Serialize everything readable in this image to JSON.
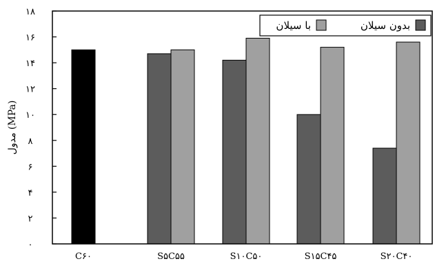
{
  "chart_data": {
    "type": "bar",
    "categories": [
      "C۶۰",
      "S۵C۵۵",
      "S۱۰C۵۰",
      "S۱۵C۴۵",
      "S۲۰C۴۰"
    ],
    "series": [
      {
        "name": "بدون سیلان",
        "values": [
          15.0,
          14.7,
          14.2,
          10.0,
          7.4
        ],
        "color": "#5c5c5c"
      },
      {
        "name": "با سیلان",
        "values": [
          null,
          15.0,
          15.9,
          15.2,
          15.6
        ],
        "color": "#a0a0a0"
      }
    ],
    "reference_bar": {
      "category": "C۶۰",
      "color": "#000000"
    },
    "yticks": [
      "۰",
      "۲",
      "۴",
      "۶",
      "۸",
      "۱۰",
      "۱۲",
      "۱۴",
      "۱۶",
      "۱۸"
    ],
    "ylim": [
      0,
      18
    ],
    "ylabel": "مدول (MPa)",
    "xlabel": "",
    "legend_position": "top-right",
    "grid": false
  }
}
